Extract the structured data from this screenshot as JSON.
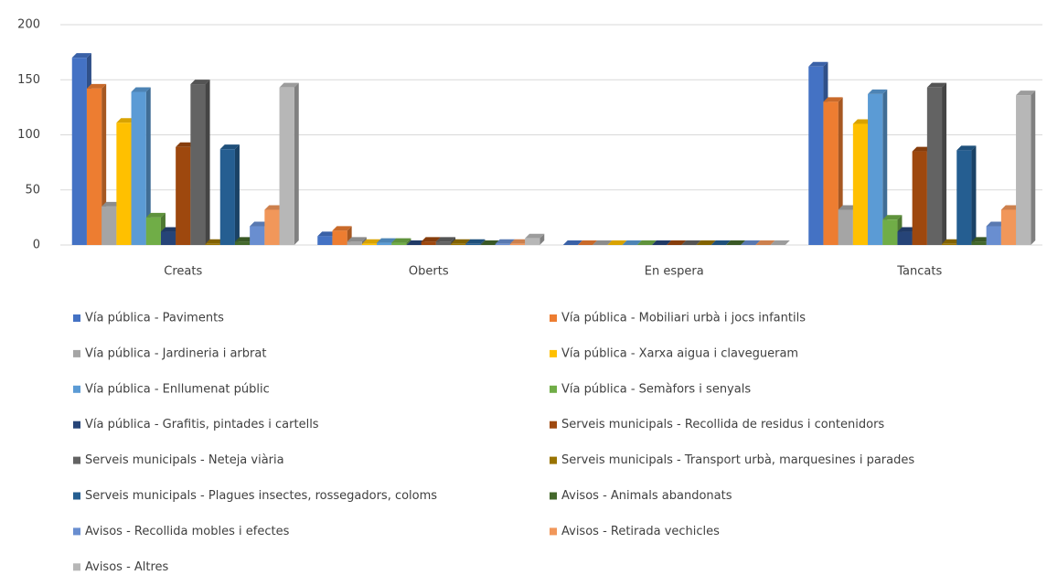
{
  "chart_data": {
    "type": "bar3d",
    "categories": [
      "Creats",
      "Oberts",
      "En espera",
      "Tancats"
    ],
    "ylim": [
      0,
      200
    ],
    "yticks": [
      0,
      50,
      100,
      150,
      200
    ],
    "grid": true,
    "legend": "bottom",
    "series": [
      {
        "name": "Vía pública - Paviments",
        "color": "#4472c4",
        "values": [
          170,
          8,
          0,
          162
        ]
      },
      {
        "name": "Vía pública - Mobiliari urbà i jocs infantils",
        "color": "#ed7d31",
        "values": [
          142,
          13,
          0,
          130
        ]
      },
      {
        "name": "Vía pública - Jardineria i arbrat",
        "color": "#a5a5a5",
        "values": [
          35,
          3,
          0,
          32
        ]
      },
      {
        "name": "Vía pública - Xarxa aigua i clavegueram",
        "color": "#ffc000",
        "values": [
          111,
          1,
          0,
          110
        ]
      },
      {
        "name": "Vía pública - Enllumenat públic",
        "color": "#5b9bd5",
        "values": [
          139,
          2,
          0,
          137
        ]
      },
      {
        "name": "Vía pública - Semàfors i senyals",
        "color": "#70ad47",
        "values": [
          25,
          2,
          0,
          23
        ]
      },
      {
        "name": "Vía pública - Grafitis, pintades i cartells",
        "color": "#264478",
        "values": [
          12,
          0,
          0,
          12
        ]
      },
      {
        "name": "Serveis municipals - Recollida de residus i contenidors",
        "color": "#9e480e",
        "values": [
          89,
          3,
          0,
          85
        ]
      },
      {
        "name": "Serveis municipals - Neteja viària",
        "color": "#636363",
        "values": [
          146,
          3,
          0,
          143
        ]
      },
      {
        "name": "Serveis municipals - Transport urbà, marquesines i parades",
        "color": "#997300",
        "values": [
          1,
          1,
          0,
          1
        ]
      },
      {
        "name": "Serveis municipals - Plagues insectes, rossegadors, coloms",
        "color": "#255e91",
        "values": [
          87,
          1,
          0,
          86
        ]
      },
      {
        "name": "Avisos - Animals abandonats",
        "color": "#43682b",
        "values": [
          3,
          0,
          0,
          3
        ]
      },
      {
        "name": "Avisos - Recollida mobles i efectes",
        "color": "#698ed0",
        "values": [
          17,
          1,
          0,
          17
        ]
      },
      {
        "name": "Avisos - Retirada vechicles",
        "color": "#f1975a",
        "values": [
          32,
          1,
          0,
          32
        ]
      },
      {
        "name": "Avisos - Altres",
        "color": "#b7b7b7",
        "values": [
          143,
          6,
          0,
          136
        ]
      }
    ]
  }
}
